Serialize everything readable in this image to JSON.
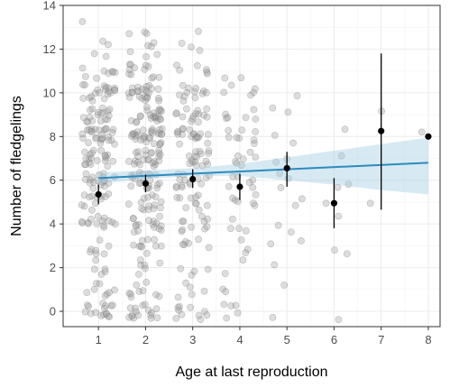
{
  "chart_data": {
    "type": "scatter",
    "title": "",
    "xlabel": "Age at last reproduction",
    "ylabel": "Number of fledgelings",
    "xlim": [
      0.25,
      8.25
    ],
    "ylim": [
      -0.7,
      14
    ],
    "x_ticks": [
      1,
      2,
      3,
      4,
      5,
      6,
      7,
      8
    ],
    "y_ticks": [
      0,
      2,
      4,
      6,
      8,
      10,
      12,
      14
    ],
    "grid": true,
    "legend": "none",
    "series": [
      {
        "type": "mean_with_error",
        "points": [
          {
            "x": 1,
            "y": 5.35,
            "low": 4.9,
            "high": 5.8
          },
          {
            "x": 2,
            "y": 5.85,
            "low": 5.45,
            "high": 6.25
          },
          {
            "x": 3,
            "y": 6.05,
            "low": 5.65,
            "high": 6.5
          },
          {
            "x": 4,
            "y": 5.7,
            "low": 5.1,
            "high": 6.3
          },
          {
            "x": 5,
            "y": 6.55,
            "low": 5.7,
            "high": 7.3
          },
          {
            "x": 6,
            "y": 4.95,
            "low": 3.8,
            "high": 6.1
          },
          {
            "x": 7,
            "y": 8.25,
            "low": 4.65,
            "high": 11.8
          },
          {
            "x": 8,
            "y": 8.0,
            "low": 8.0,
            "high": 8.0
          }
        ]
      },
      {
        "type": "trend_line",
        "x_range": [
          1,
          8
        ],
        "y_start": 6.1,
        "y_end": 6.8,
        "band": [
          {
            "x": 1,
            "low": 5.85,
            "high": 6.35
          },
          {
            "x": 2,
            "low": 6.05,
            "high": 6.45
          },
          {
            "x": 3,
            "low": 6.2,
            "high": 6.55
          },
          {
            "x": 4,
            "low": 6.2,
            "high": 6.75
          },
          {
            "x": 5,
            "low": 6.0,
            "high": 7.05
          },
          {
            "x": 6,
            "low": 5.8,
            "high": 7.35
          },
          {
            "x": 7,
            "low": 5.55,
            "high": 7.65
          },
          {
            "x": 8,
            "low": 5.35,
            "high": 7.95
          }
        ]
      },
      {
        "type": "jitter_counts",
        "ages": [
          1,
          2,
          3,
          4,
          5,
          6,
          7,
          8
        ],
        "counts_per_value": [
          [
            16,
            8,
            5,
            7,
            14,
            12,
            18,
            20,
            26,
            18,
            20,
            8,
            4,
            1
          ],
          [
            16,
            9,
            6,
            10,
            16,
            14,
            22,
            24,
            30,
            22,
            24,
            12,
            6,
            3
          ],
          [
            10,
            5,
            4,
            6,
            10,
            10,
            14,
            16,
            18,
            14,
            12,
            6,
            3,
            1
          ],
          [
            5,
            2,
            2,
            3,
            4,
            6,
            6,
            7,
            8,
            6,
            5,
            2,
            0,
            0
          ],
          [
            1,
            1,
            1,
            2,
            2,
            2,
            3,
            2,
            2,
            2,
            1,
            0,
            0,
            0
          ],
          [
            1,
            0,
            0,
            2,
            1,
            1,
            2,
            1,
            1,
            0,
            0,
            0,
            0,
            0
          ],
          [
            0,
            0,
            0,
            0,
            0,
            1,
            0,
            0,
            0,
            1,
            0,
            0,
            0,
            0
          ],
          [
            0,
            0,
            0,
            0,
            0,
            0,
            0,
            0,
            1,
            0,
            0,
            0,
            0,
            0
          ]
        ]
      }
    ],
    "colors": {
      "points": "#9e9e9e",
      "mean": "#000000",
      "trend": "#2b8cbe",
      "band": "#a6cee3",
      "grid": "#ebebeb",
      "panel_border": "#333333"
    }
  }
}
